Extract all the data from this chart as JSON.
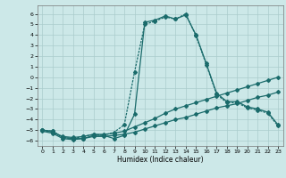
{
  "xlabel": "Humidex (Indice chaleur)",
  "xlim": [
    -0.5,
    23.5
  ],
  "ylim": [
    -6.5,
    6.8
  ],
  "xticks": [
    0,
    1,
    2,
    3,
    4,
    5,
    6,
    7,
    8,
    9,
    10,
    11,
    12,
    13,
    14,
    15,
    16,
    17,
    18,
    19,
    20,
    21,
    22,
    23
  ],
  "yticks": [
    -6,
    -5,
    -4,
    -3,
    -2,
    -1,
    0,
    1,
    2,
    3,
    4,
    5,
    6
  ],
  "bg_color": "#cce8e8",
  "grid_color": "#aacccc",
  "line_color": "#1a6b6b",
  "s1_x": [
    0,
    1,
    2,
    3,
    4,
    5,
    6,
    7,
    8,
    9,
    10,
    11,
    12,
    13,
    14,
    15,
    16,
    17,
    18,
    19,
    20,
    21,
    22,
    23
  ],
  "s1_y": [
    -5.0,
    -5.1,
    -5.7,
    -5.8,
    -5.8,
    -5.5,
    -5.5,
    -5.8,
    -5.5,
    -3.5,
    5.2,
    5.4,
    5.8,
    5.5,
    5.9,
    4.0,
    1.3,
    -1.5,
    -2.3,
    -2.3,
    -2.8,
    -3.0,
    -3.3,
    -4.5
  ],
  "s2_x": [
    0,
    1,
    2,
    3,
    4,
    5,
    6,
    7,
    8,
    9,
    10,
    11,
    12,
    13,
    14,
    15,
    16,
    17,
    18,
    19,
    20,
    21,
    22,
    23
  ],
  "s2_y": [
    -5.0,
    -5.1,
    -5.7,
    -5.8,
    -5.6,
    -5.4,
    -5.5,
    -5.2,
    -4.5,
    0.5,
    5.0,
    5.3,
    5.7,
    5.5,
    6.0,
    3.9,
    1.2,
    -1.6,
    -2.4,
    -2.4,
    -2.9,
    -3.1,
    -3.4,
    -4.6
  ],
  "s3_x": [
    0,
    1,
    2,
    3,
    4,
    5,
    6,
    7,
    8,
    9,
    10,
    11,
    12,
    13,
    14,
    15,
    16,
    17,
    18,
    19,
    20,
    21,
    22,
    23
  ],
  "s3_y": [
    -5.0,
    -5.2,
    -5.6,
    -5.7,
    -5.6,
    -5.4,
    -5.4,
    -5.3,
    -5.1,
    -4.7,
    -4.3,
    -3.9,
    -3.4,
    -3.0,
    -2.7,
    -2.4,
    -2.1,
    -1.8,
    -1.5,
    -1.2,
    -0.9,
    -0.6,
    -0.3,
    -0.0
  ],
  "s4_x": [
    0,
    1,
    2,
    3,
    4,
    5,
    6,
    7,
    8,
    9,
    10,
    11,
    12,
    13,
    14,
    15,
    16,
    17,
    18,
    19,
    20,
    21,
    22,
    23
  ],
  "s4_y": [
    -5.1,
    -5.3,
    -5.8,
    -5.9,
    -5.8,
    -5.6,
    -5.6,
    -5.5,
    -5.4,
    -5.2,
    -4.9,
    -4.6,
    -4.3,
    -4.0,
    -3.8,
    -3.5,
    -3.2,
    -2.9,
    -2.7,
    -2.5,
    -2.2,
    -1.9,
    -1.7,
    -1.4
  ]
}
